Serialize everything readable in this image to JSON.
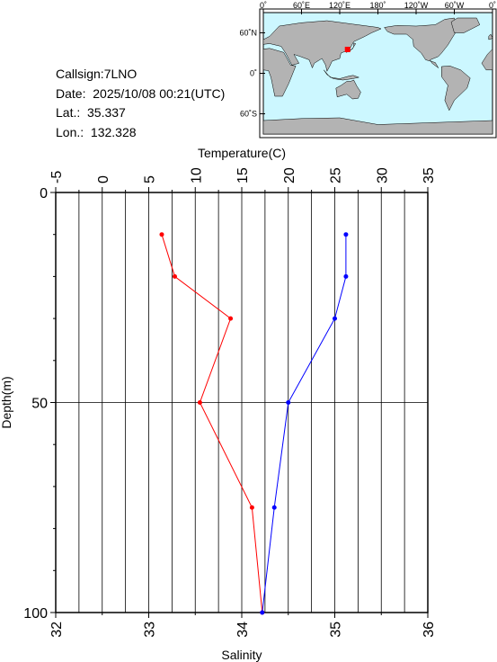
{
  "info": {
    "callsign": "Callsign:7LNO",
    "date": "Date:  2025/10/08 00:21(UTC)",
    "lat": "Lat.:  35.337",
    "lon": "Lon.:  132.328"
  },
  "map": {
    "top_labels": [
      "0˚",
      "60˚E",
      "120˚E",
      "180˚",
      "120˚W",
      "60˚W",
      "0˚"
    ],
    "left_labels": [
      "60˚N",
      "0˚",
      "60˚S"
    ],
    "ocean_color": "#ccf7ff",
    "land_color": "#b3b3b3",
    "marker_color": "#ff0000",
    "station": {
      "lat": 35.337,
      "lon": 132.328
    }
  },
  "chart_data": {
    "type": "line",
    "depth_axis": {
      "label": "Depth(m)",
      "ticks": [
        0,
        50,
        100
      ],
      "range": [
        0,
        100
      ]
    },
    "temperature_axis": {
      "label": "Temperature(C)",
      "ticks": [
        -5,
        0,
        5,
        10,
        15,
        20,
        25,
        30,
        35
      ],
      "range": [
        -5,
        35
      ]
    },
    "salinity_axis": {
      "label": "Salinity",
      "ticks": [
        32,
        33,
        34,
        35,
        36
      ],
      "range": [
        32,
        36
      ]
    },
    "series": [
      {
        "quantity": "temperature",
        "color": "#ff0000",
        "points": [
          {
            "depth": 10,
            "value": 6.4
          },
          {
            "depth": 20,
            "value": 7.8
          },
          {
            "depth": 30,
            "value": 13.8
          },
          {
            "depth": 50,
            "value": 10.5
          },
          {
            "depth": 75,
            "value": 16.1
          },
          {
            "depth": 100,
            "value": 17.2
          }
        ]
      },
      {
        "quantity": "salinity",
        "color": "#0000ff",
        "points": [
          {
            "depth": 10,
            "value": 35.12
          },
          {
            "depth": 20,
            "value": 35.12
          },
          {
            "depth": 30,
            "value": 35.0
          },
          {
            "depth": 50,
            "value": 34.5
          },
          {
            "depth": 75,
            "value": 34.35
          },
          {
            "depth": 100,
            "value": 34.22
          }
        ]
      }
    ]
  }
}
